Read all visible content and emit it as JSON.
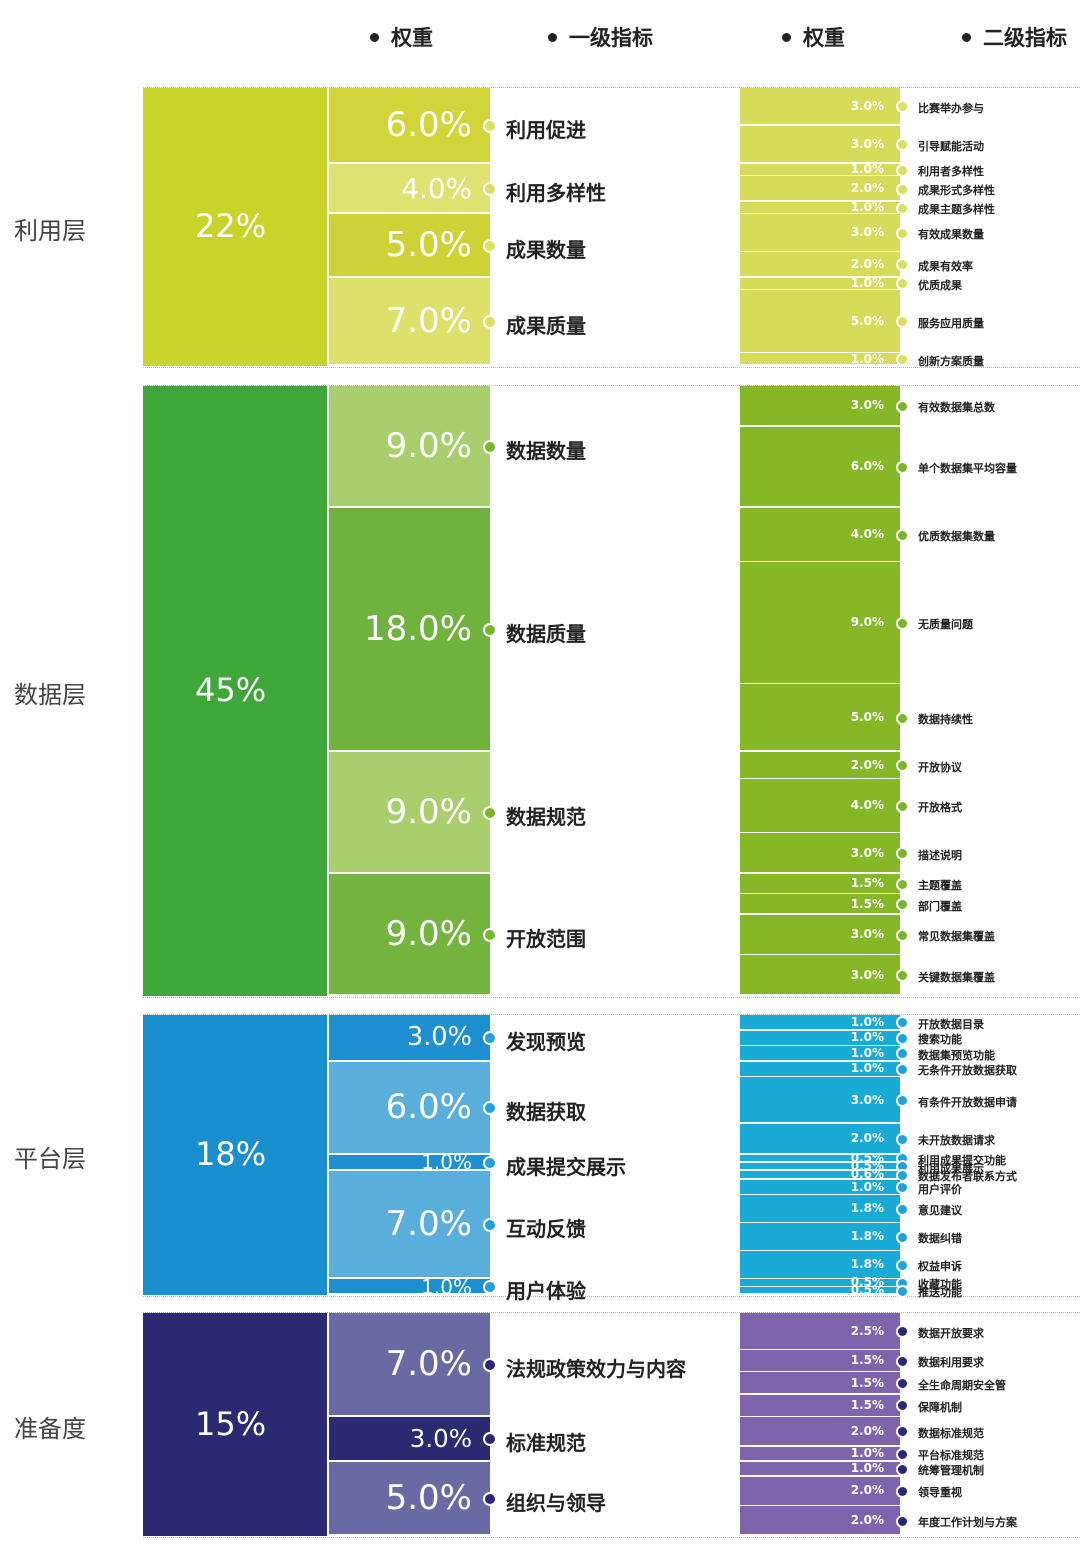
{
  "headers": [
    "权重",
    "一级指标",
    "权重",
    "二级指标"
  ],
  "colors": {
    "利用层": {
      "layer": "#c8d42a",
      "l1": [
        "#d2d43a",
        "#dde270",
        "#cfd236",
        "#dde06a"
      ],
      "l2": "#d6dc5a",
      "dot": "#d9e062"
    },
    "数据层": {
      "layer": "#3fa63a",
      "l1": [
        "#a8ce6e",
        "#6fb33e",
        "#a8ce6e",
        "#74b53f"
      ],
      "l2": "#84b826",
      "dot": "#7ab52c"
    },
    "平台层": {
      "layer": "#1a8fd0",
      "l1": [
        "#1e90d2",
        "#5aaedb",
        "#1e90d2",
        "#5aaedb",
        "#1e90d2"
      ],
      "l2": "#1aaad6",
      "dot": "#22a0da"
    },
    "准备度": {
      "layer": "#2a2a72",
      "l1": [
        "#676aa3",
        "#2a2a72",
        "#676aa3"
      ],
      "l2": "#7e64ac",
      "dot": "#2a2a72"
    }
  },
  "chart_data": {
    "type": "table",
    "columns": [
      "权重",
      "一级指标",
      "权重",
      "二级指标"
    ],
    "layers": [
      {
        "name": "利用层",
        "weight": "22%",
        "level1": [
          {
            "weight": "6.0%",
            "name": "利用促进",
            "level2": [
              {
                "weight": "3.0%",
                "name": "比赛举办参与"
              },
              {
                "weight": "3.0%",
                "name": "引导赋能活动"
              }
            ]
          },
          {
            "weight": "4.0%",
            "name": "利用多样性",
            "level2": [
              {
                "weight": "1.0%",
                "name": "利用者多样性"
              },
              {
                "weight": "2.0%",
                "name": "成果形式多样性"
              },
              {
                "weight": "1.0%",
                "name": "成果主题多样性"
              }
            ]
          },
          {
            "weight": "5.0%",
            "name": "成果数量",
            "level2": [
              {
                "weight": "3.0%",
                "name": "有效成果数量"
              },
              {
                "weight": "2.0%",
                "name": "成果有效率"
              }
            ]
          },
          {
            "weight": "7.0%",
            "name": "成果质量",
            "level2": [
              {
                "weight": "1.0%",
                "name": "优质成果"
              },
              {
                "weight": "5.0%",
                "name": "服务应用质量"
              },
              {
                "weight": "1.0%",
                "name": "创新方案质量"
              }
            ]
          }
        ]
      },
      {
        "name": "数据层",
        "weight": "45%",
        "level1": [
          {
            "weight": "9.0%",
            "name": "数据数量",
            "level2": [
              {
                "weight": "3.0%",
                "name": "有效数据集总数"
              },
              {
                "weight": "6.0%",
                "name": "单个数据集平均容量"
              }
            ]
          },
          {
            "weight": "18.0%",
            "name": "数据质量",
            "level2": [
              {
                "weight": "4.0%",
                "name": "优质数据集数量"
              },
              {
                "weight": "9.0%",
                "name": "无质量问题"
              },
              {
                "weight": "5.0%",
                "name": "数据持续性"
              }
            ]
          },
          {
            "weight": "9.0%",
            "name": "数据规范",
            "level2": [
              {
                "weight": "2.0%",
                "name": "开放协议"
              },
              {
                "weight": "4.0%",
                "name": "开放格式"
              },
              {
                "weight": "3.0%",
                "name": "描述说明"
              }
            ]
          },
          {
            "weight": "9.0%",
            "name": "开放范围",
            "level2": [
              {
                "weight": "1.5%",
                "name": "主题覆盖"
              },
              {
                "weight": "1.5%",
                "name": "部门覆盖"
              },
              {
                "weight": "3.0%",
                "name": "常见数据集覆盖"
              },
              {
                "weight": "3.0%",
                "name": "关键数据集覆盖"
              }
            ]
          }
        ]
      },
      {
        "name": "平台层",
        "weight": "18%",
        "level1": [
          {
            "weight": "3.0%",
            "name": "发现预览",
            "level2": [
              {
                "weight": "1.0%",
                "name": "开放数据目录"
              },
              {
                "weight": "1.0%",
                "name": "搜索功能"
              },
              {
                "weight": "1.0%",
                "name": "数据集预览功能"
              }
            ]
          },
          {
            "weight": "6.0%",
            "name": "数据获取",
            "level2": [
              {
                "weight": "1.0%",
                "name": "无条件开放数据获取"
              },
              {
                "weight": "3.0%",
                "name": "有条件开放数据申请"
              },
              {
                "weight": "2.0%",
                "name": "未开放数据请求"
              }
            ]
          },
          {
            "weight": "1.0%",
            "name": "成果提交展示",
            "level2": [
              {
                "weight": "0.5%",
                "name": "利用成果提交功能"
              },
              {
                "weight": "0.5%",
                "name": "利用成果展示"
              }
            ]
          },
          {
            "weight": "7.0%",
            "name": "互动反馈",
            "level2": [
              {
                "weight": "0.6%",
                "name": "数据发布者联系方式"
              },
              {
                "weight": "1.0%",
                "name": "用户评价"
              },
              {
                "weight": "1.8%",
                "name": "意见建议"
              },
              {
                "weight": "1.8%",
                "name": "数据纠错"
              },
              {
                "weight": "1.8%",
                "name": "权益申诉"
              }
            ]
          },
          {
            "weight": "1.0%",
            "name": "用户体验",
            "level2": [
              {
                "weight": "0.5%",
                "name": "收藏功能"
              },
              {
                "weight": "0.5%",
                "name": "推送功能"
              }
            ]
          }
        ]
      },
      {
        "name": "准备度",
        "weight": "15%",
        "level1": [
          {
            "weight": "7.0%",
            "name": "法规政策效力与内容",
            "level2": [
              {
                "weight": "2.5%",
                "name": "数据开放要求"
              },
              {
                "weight": "1.5%",
                "name": "数据利用要求"
              },
              {
                "weight": "1.5%",
                "name": "全生命周期安全管"
              },
              {
                "weight": "1.5%",
                "name": "保障机制"
              }
            ]
          },
          {
            "weight": "3.0%",
            "name": "标准规范",
            "level2": [
              {
                "weight": "2.0%",
                "name": "数据标准规范"
              },
              {
                "weight": "1.0%",
                "name": "平台标准规范"
              }
            ]
          },
          {
            "weight": "5.0%",
            "name": "组织与领导",
            "level2": [
              {
                "weight": "1.0%",
                "name": "统筹管理机制"
              },
              {
                "weight": "2.0%",
                "name": "领导重视"
              },
              {
                "weight": "2.0%",
                "name": "年度工作计划与方案"
              }
            ]
          }
        ]
      }
    ]
  }
}
